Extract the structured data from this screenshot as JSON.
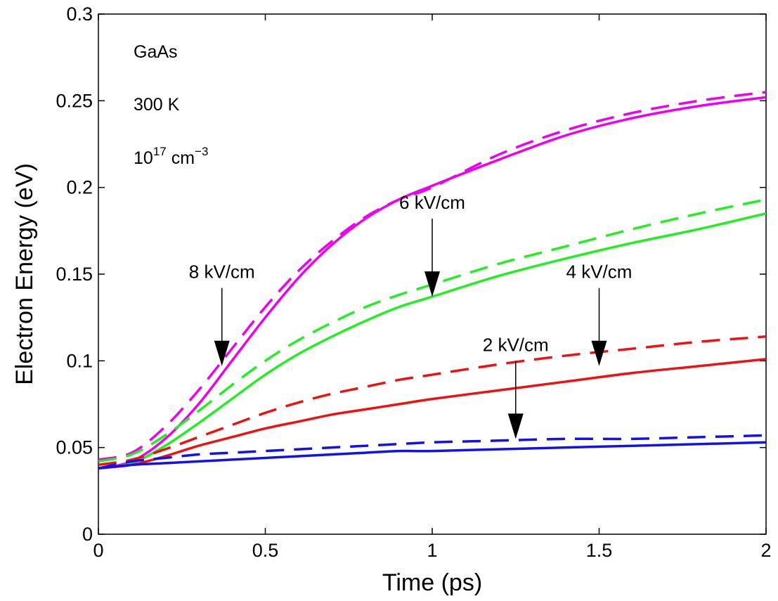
{
  "chart_data": {
    "type": "line",
    "xlabel": "Time (ps)",
    "ylabel": "Electron Energy (eV)",
    "xlim": [
      0,
      2
    ],
    "ylim": [
      0,
      0.3
    ],
    "xticks": [
      0,
      0.5,
      1,
      1.5,
      2
    ],
    "xtick_labels": [
      "0",
      "0.5",
      "1",
      "1.5",
      "2"
    ],
    "yticks": [
      0,
      0.05,
      0.1,
      0.15,
      0.2,
      0.25,
      0.3
    ],
    "ytick_labels": [
      "0",
      "0.05",
      "0.1",
      "0.15",
      "0.2",
      "0.25",
      "0.3"
    ],
    "grid": false,
    "legend": "none",
    "notes": {
      "material": "GaAs",
      "temperature": "300 K",
      "density_base": "10",
      "density_exp": "17",
      "density_unit": "cm",
      "density_unit_exp": "−3"
    },
    "series": [
      {
        "field": "8 kV/cm",
        "style": "solid",
        "color": "#ee00ee",
        "x": [
          0,
          0.1,
          0.2,
          0.3,
          0.4,
          0.5,
          0.6,
          0.7,
          0.8,
          0.9,
          1.0,
          1.2,
          1.4,
          1.6,
          1.8,
          2.0
        ],
        "y": [
          0.038,
          0.042,
          0.055,
          0.075,
          0.1,
          0.125,
          0.148,
          0.167,
          0.182,
          0.193,
          0.201,
          0.216,
          0.23,
          0.24,
          0.247,
          0.252
        ]
      },
      {
        "field": "8 kV/cm",
        "style": "dashed",
        "color": "#ee00ee",
        "x": [
          0,
          0.1,
          0.2,
          0.3,
          0.4,
          0.5,
          0.6,
          0.7,
          0.8,
          0.9,
          1.0,
          1.2,
          1.4,
          1.6,
          1.8,
          2.0
        ],
        "y": [
          0.043,
          0.047,
          0.062,
          0.083,
          0.107,
          0.131,
          0.152,
          0.169,
          0.183,
          0.193,
          0.2,
          0.219,
          0.233,
          0.243,
          0.25,
          0.255
        ]
      },
      {
        "field": "6 kV/cm",
        "style": "solid",
        "color": "#22ee22",
        "x": [
          0,
          0.1,
          0.2,
          0.3,
          0.4,
          0.5,
          0.6,
          0.7,
          0.8,
          0.9,
          1.0,
          1.2,
          1.4,
          1.6,
          1.8,
          2.0
        ],
        "y": [
          0.038,
          0.041,
          0.051,
          0.064,
          0.078,
          0.092,
          0.104,
          0.114,
          0.123,
          0.131,
          0.137,
          0.149,
          0.159,
          0.168,
          0.176,
          0.185
        ]
      },
      {
        "field": "6 kV/cm",
        "style": "dashed",
        "color": "#22ee22",
        "x": [
          0,
          0.1,
          0.2,
          0.3,
          0.4,
          0.5,
          0.6,
          0.7,
          0.8,
          0.9,
          1.0,
          1.2,
          1.4,
          1.6,
          1.8,
          2.0
        ],
        "y": [
          0.042,
          0.046,
          0.057,
          0.071,
          0.086,
          0.1,
          0.112,
          0.122,
          0.131,
          0.138,
          0.144,
          0.156,
          0.166,
          0.176,
          0.185,
          0.193
        ]
      },
      {
        "field": "4 kV/cm",
        "style": "solid",
        "color": "#ee1111",
        "x": [
          0,
          0.1,
          0.2,
          0.3,
          0.4,
          0.5,
          0.6,
          0.7,
          0.8,
          0.9,
          1.0,
          1.2,
          1.4,
          1.6,
          1.8,
          2.0
        ],
        "y": [
          0.038,
          0.04,
          0.045,
          0.051,
          0.056,
          0.061,
          0.065,
          0.069,
          0.072,
          0.075,
          0.078,
          0.083,
          0.088,
          0.093,
          0.097,
          0.101
        ]
      },
      {
        "field": "4 kV/cm",
        "style": "dashed",
        "color": "#ee1111",
        "x": [
          0,
          0.1,
          0.2,
          0.3,
          0.4,
          0.5,
          0.6,
          0.7,
          0.8,
          0.9,
          1.0,
          1.2,
          1.4,
          1.6,
          1.8,
          2.0
        ],
        "y": [
          0.04,
          0.043,
          0.049,
          0.056,
          0.063,
          0.07,
          0.076,
          0.081,
          0.085,
          0.089,
          0.092,
          0.098,
          0.103,
          0.107,
          0.111,
          0.114
        ]
      },
      {
        "field": "2 kV/cm",
        "style": "solid",
        "color": "#1111ee",
        "x": [
          0,
          0.1,
          0.2,
          0.3,
          0.4,
          0.5,
          0.6,
          0.7,
          0.8,
          0.9,
          1.0,
          1.2,
          1.4,
          1.6,
          1.8,
          2.0
        ],
        "y": [
          0.038,
          0.04,
          0.041,
          0.042,
          0.043,
          0.044,
          0.045,
          0.046,
          0.047,
          0.048,
          0.048,
          0.049,
          0.05,
          0.051,
          0.052,
          0.053
        ]
      },
      {
        "field": "2 kV/cm",
        "style": "dashed",
        "color": "#1111ee",
        "x": [
          0,
          0.1,
          0.2,
          0.3,
          0.4,
          0.5,
          0.6,
          0.7,
          0.8,
          0.9,
          1.0,
          1.2,
          1.4,
          1.6,
          1.8,
          2.0
        ],
        "y": [
          0.038,
          0.042,
          0.044,
          0.046,
          0.047,
          0.048,
          0.049,
          0.05,
          0.051,
          0.052,
          0.053,
          0.054,
          0.055,
          0.055,
          0.056,
          0.057
        ]
      }
    ],
    "annotations": [
      {
        "text": "8 kV/cm",
        "x": 0.37,
        "y": 0.097
      },
      {
        "text": "6 kV/cm",
        "x": 1.0,
        "y": 0.137
      },
      {
        "text": "4 kV/cm",
        "x": 1.5,
        "y": 0.097
      },
      {
        "text": "2 kV/cm",
        "x": 1.25,
        "y": 0.055
      }
    ]
  }
}
